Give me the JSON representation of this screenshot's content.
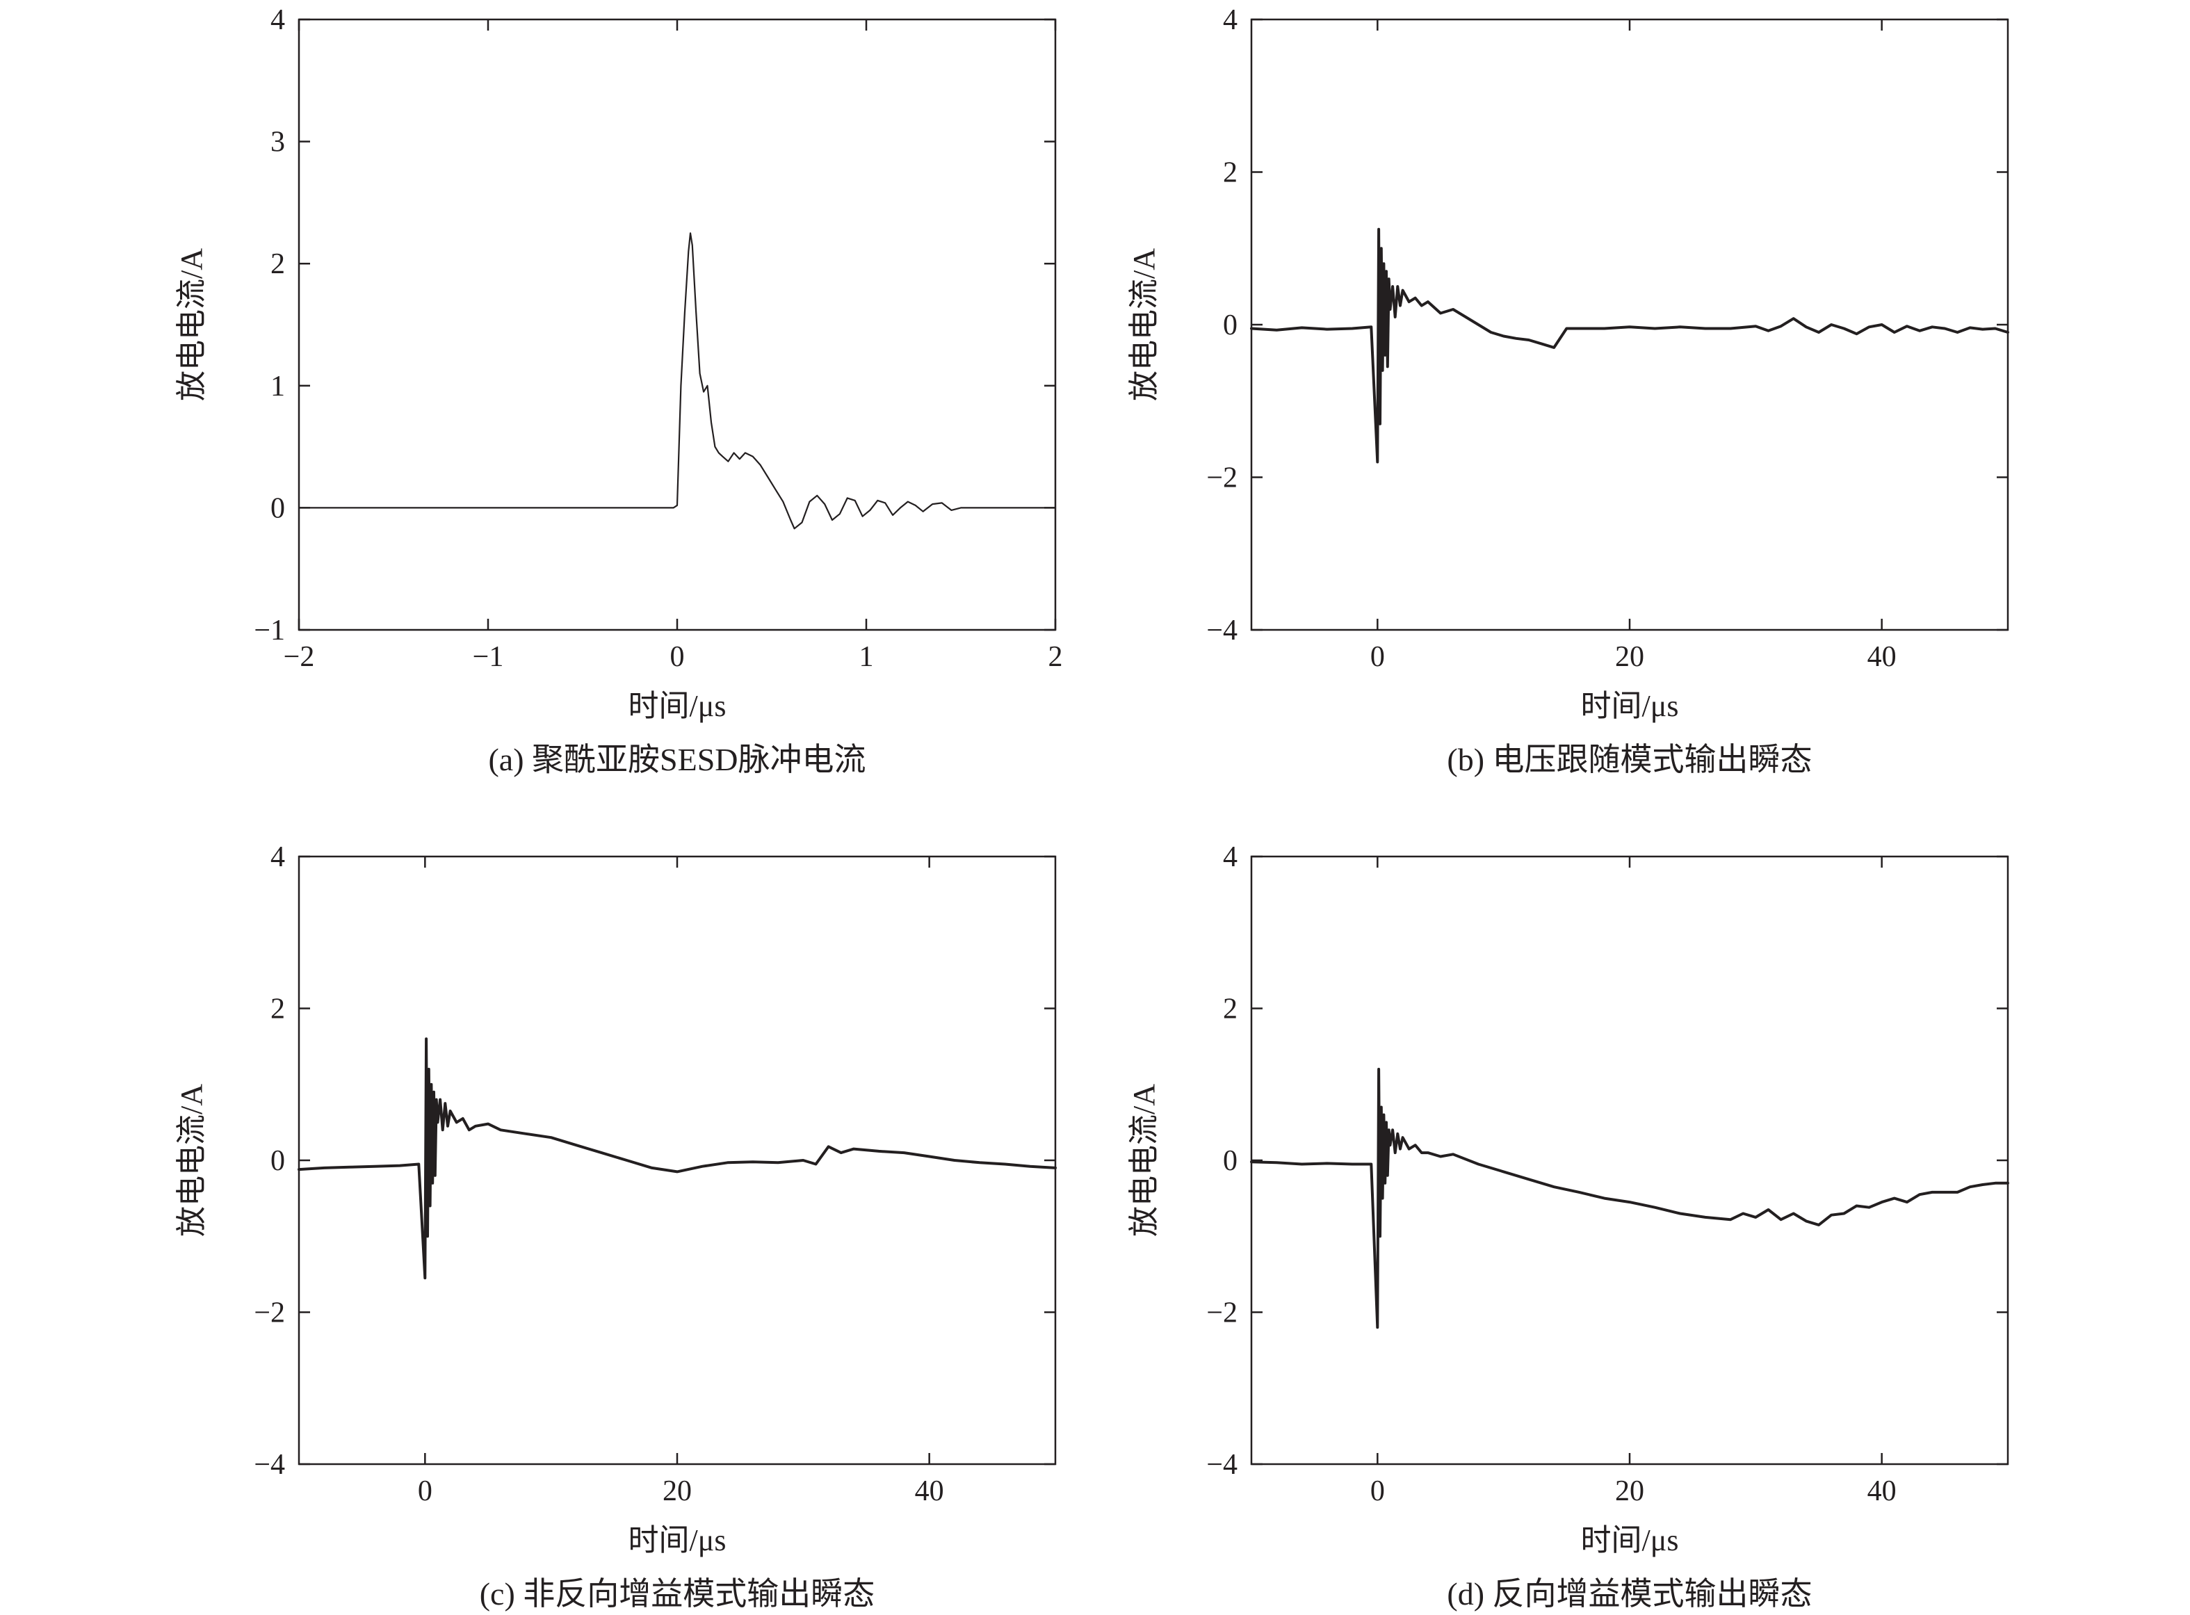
{
  "colors": {
    "ink": "#231f20",
    "background": "#ffffff"
  },
  "chart_data": [
    {
      "id": "a",
      "type": "line",
      "caption": "(a) 聚酰亚胺SESD脉冲电流",
      "xlabel": "时间/μs",
      "ylabel": "放电电流/A",
      "xlim": [
        -2,
        2
      ],
      "ylim": [
        -1,
        4
      ],
      "xticks": [
        -2,
        -1,
        0,
        1,
        2
      ],
      "xtick_labels": [
        "−2",
        "−1",
        "0",
        "1",
        "2"
      ],
      "yticks": [
        -1,
        0,
        1,
        2,
        3,
        4
      ],
      "ytick_labels": [
        "−1",
        "0",
        "1",
        "2",
        "3",
        "4"
      ],
      "grid": false,
      "line_width": 2.2,
      "series": [
        {
          "x": [
            -2,
            -0.02,
            0.0,
            0.02,
            0.04,
            0.06,
            0.07,
            0.08,
            0.1,
            0.12,
            0.14,
            0.16,
            0.18,
            0.2,
            0.22,
            0.24,
            0.27,
            0.3,
            0.33,
            0.36,
            0.4,
            0.44,
            0.48,
            0.52,
            0.56,
            0.6,
            0.62,
            0.66,
            0.7,
            0.74,
            0.78,
            0.82,
            0.86,
            0.9,
            0.94,
            0.98,
            1.02,
            1.06,
            1.1,
            1.14,
            1.18,
            1.22,
            1.26,
            1.3,
            1.35,
            1.4,
            1.45,
            1.5,
            1.55,
            2
          ],
          "y": [
            0,
            0,
            0.02,
            1.0,
            1.6,
            2.1,
            2.25,
            2.15,
            1.6,
            1.1,
            0.95,
            1.0,
            0.7,
            0.5,
            0.45,
            0.42,
            0.38,
            0.45,
            0.4,
            0.45,
            0.42,
            0.35,
            0.25,
            0.15,
            0.05,
            -0.1,
            -0.17,
            -0.12,
            0.05,
            0.1,
            0.03,
            -0.1,
            -0.05,
            0.08,
            0.06,
            -0.07,
            -0.02,
            0.06,
            0.04,
            -0.06,
            0.0,
            0.05,
            0.02,
            -0.03,
            0.03,
            0.04,
            -0.02,
            0.0,
            0.0,
            0
          ]
        }
      ]
    },
    {
      "id": "b",
      "type": "line",
      "caption": "(b) 电压跟随模式输出瞬态",
      "xlabel": "时间/μs",
      "ylabel": "放电电流/A",
      "xlim": [
        -10,
        50
      ],
      "ylim": [
        -4,
        4
      ],
      "xticks": [
        0,
        20,
        40
      ],
      "xtick_labels": [
        "0",
        "20",
        "40"
      ],
      "yticks": [
        -4,
        -2,
        0,
        2,
        4
      ],
      "ytick_labels": [
        "−4",
        "−2",
        "0",
        "2",
        "4"
      ],
      "grid": false,
      "line_width": 4,
      "series": [
        {
          "x": [
            -10,
            -8,
            -6,
            -4,
            -2,
            -0.5,
            0,
            0.1,
            0.2,
            0.3,
            0.4,
            0.5,
            0.6,
            0.7,
            0.8,
            0.9,
            1.0,
            1.2,
            1.4,
            1.6,
            1.8,
            2.0,
            2.5,
            3.0,
            3.5,
            4.0,
            5.0,
            6.0,
            7.0,
            8.0,
            9.0,
            10.0,
            11.0,
            12.0,
            13.0,
            14.0,
            15.0,
            16.0,
            18.0,
            20.0,
            22.0,
            24.0,
            26.0,
            28.0,
            30.0,
            31.0,
            32.0,
            33.0,
            34.0,
            35.0,
            36.0,
            37.0,
            38.0,
            39.0,
            40.0,
            41.0,
            42.0,
            43.0,
            44.0,
            45.0,
            46.0,
            47.0,
            48.0,
            49.0,
            50.0
          ],
          "y": [
            -0.05,
            -0.07,
            -0.04,
            -0.06,
            -0.05,
            -0.03,
            -1.8,
            1.25,
            -1.3,
            1.0,
            -0.6,
            0.8,
            -0.4,
            0.7,
            -0.55,
            0.6,
            0.2,
            0.5,
            0.1,
            0.5,
            0.25,
            0.45,
            0.3,
            0.35,
            0.25,
            0.3,
            0.15,
            0.2,
            0.1,
            0.0,
            -0.1,
            -0.15,
            -0.18,
            -0.2,
            -0.25,
            -0.3,
            -0.05,
            -0.05,
            -0.05,
            -0.03,
            -0.05,
            -0.03,
            -0.05,
            -0.05,
            -0.02,
            -0.08,
            -0.02,
            0.08,
            -0.03,
            -0.1,
            0.0,
            -0.05,
            -0.12,
            -0.03,
            0.0,
            -0.1,
            -0.02,
            -0.08,
            -0.03,
            -0.05,
            -0.1,
            -0.04,
            -0.06,
            -0.05,
            -0.1
          ]
        }
      ]
    },
    {
      "id": "c",
      "type": "line",
      "caption": "(c) 非反向增益模式输出瞬态",
      "xlabel": "时间/μs",
      "ylabel": "放电电流/A",
      "xlim": [
        -10,
        50
      ],
      "ylim": [
        -4,
        4
      ],
      "xticks": [
        0,
        20,
        40
      ],
      "xtick_labels": [
        "0",
        "20",
        "40"
      ],
      "yticks": [
        -4,
        -2,
        0,
        2,
        4
      ],
      "ytick_labels": [
        "−4",
        "−2",
        "0",
        "2",
        "4"
      ],
      "grid": false,
      "line_width": 4,
      "series": [
        {
          "x": [
            -10,
            -8,
            -6,
            -4,
            -2,
            -0.5,
            0,
            0.1,
            0.2,
            0.3,
            0.4,
            0.5,
            0.6,
            0.7,
            0.8,
            0.9,
            1.0,
            1.2,
            1.4,
            1.6,
            1.8,
            2.0,
            2.5,
            3.0,
            3.5,
            4.0,
            5.0,
            6.0,
            8.0,
            10.0,
            12.0,
            14.0,
            16.0,
            18.0,
            20.0,
            22.0,
            24.0,
            26.0,
            28.0,
            30.0,
            31.0,
            32.0,
            33.0,
            34.0,
            36.0,
            38.0,
            40.0,
            42.0,
            44.0,
            46.0,
            48.0,
            50.0
          ],
          "y": [
            -0.12,
            -0.1,
            -0.09,
            -0.08,
            -0.07,
            -0.05,
            -1.55,
            1.6,
            -1.0,
            1.2,
            -0.6,
            1.0,
            -0.3,
            0.9,
            -0.2,
            0.8,
            0.5,
            0.8,
            0.4,
            0.75,
            0.45,
            0.65,
            0.5,
            0.55,
            0.4,
            0.45,
            0.48,
            0.4,
            0.35,
            0.3,
            0.2,
            0.1,
            0.0,
            -0.1,
            -0.15,
            -0.08,
            -0.03,
            -0.02,
            -0.03,
            0.0,
            -0.05,
            0.18,
            0.1,
            0.15,
            0.12,
            0.1,
            0.05,
            0.0,
            -0.03,
            -0.05,
            -0.08,
            -0.1
          ]
        }
      ]
    },
    {
      "id": "d",
      "type": "line",
      "caption": "(d) 反向增益模式输出瞬态",
      "xlabel": "时间/μs",
      "ylabel": "放电电流/A",
      "xlim": [
        -10,
        50
      ],
      "ylim": [
        -4,
        4
      ],
      "xticks": [
        0,
        20,
        40
      ],
      "xtick_labels": [
        "0",
        "20",
        "40"
      ],
      "yticks": [
        -4,
        -2,
        0,
        2,
        4
      ],
      "ytick_labels": [
        "−4",
        "−2",
        "0",
        "2",
        "4"
      ],
      "grid": false,
      "line_width": 4,
      "series": [
        {
          "x": [
            -10,
            -8,
            -6,
            -4,
            -2,
            -0.5,
            0,
            0.1,
            0.2,
            0.3,
            0.4,
            0.5,
            0.6,
            0.7,
            0.8,
            0.9,
            1.0,
            1.2,
            1.4,
            1.6,
            1.8,
            2.0,
            2.5,
            3.0,
            3.5,
            4.0,
            5.0,
            6.0,
            8.0,
            10.0,
            12.0,
            14.0,
            16.0,
            18.0,
            20.0,
            22.0,
            24.0,
            26.0,
            28.0,
            29.0,
            30.0,
            31.0,
            32.0,
            33.0,
            34.0,
            35.0,
            36.0,
            37.0,
            38.0,
            39.0,
            40.0,
            41.0,
            42.0,
            43.0,
            44.0,
            45.0,
            46.0,
            47.0,
            48.0,
            49.0,
            50.0
          ],
          "y": [
            -0.02,
            -0.03,
            -0.05,
            -0.04,
            -0.05,
            -0.05,
            -2.2,
            1.2,
            -1.0,
            0.7,
            -0.5,
            0.6,
            -0.3,
            0.5,
            -0.2,
            0.4,
            0.2,
            0.4,
            0.1,
            0.35,
            0.15,
            0.3,
            0.15,
            0.2,
            0.1,
            0.1,
            0.05,
            0.08,
            -0.05,
            -0.15,
            -0.25,
            -0.35,
            -0.42,
            -0.5,
            -0.55,
            -0.62,
            -0.7,
            -0.75,
            -0.78,
            -0.7,
            -0.75,
            -0.65,
            -0.78,
            -0.7,
            -0.8,
            -0.85,
            -0.72,
            -0.7,
            -0.6,
            -0.62,
            -0.55,
            -0.5,
            -0.55,
            -0.45,
            -0.42,
            -0.42,
            -0.42,
            -0.35,
            -0.32,
            -0.3,
            -0.3
          ]
        }
      ]
    }
  ]
}
